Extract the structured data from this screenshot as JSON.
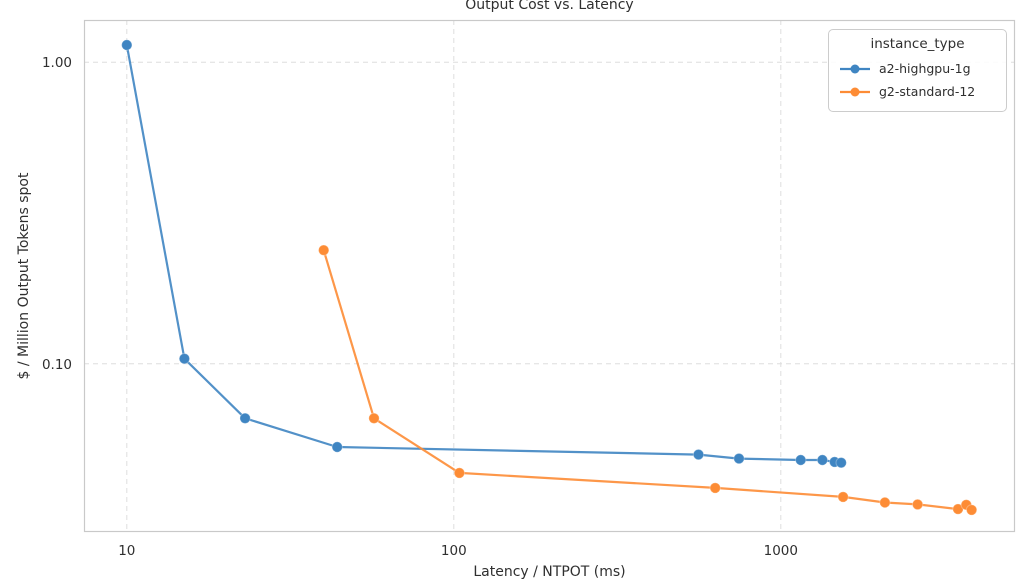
{
  "chart_data": {
    "type": "line",
    "title": "Output Cost vs. Latency",
    "xlabel": "Latency / NTPOT (ms)",
    "ylabel": "$ / Million Output Tokens spot",
    "xscale": "log",
    "yscale": "log",
    "xlim": [
      7.4,
      5200
    ],
    "ylim": [
      0.0277,
      1.38
    ],
    "grid": "dashed",
    "xticks": [
      {
        "value": 10,
        "label": "10"
      },
      {
        "value": 100,
        "label": "100"
      },
      {
        "value": 1000,
        "label": "1000"
      }
    ],
    "yticks": [
      {
        "value": 1.0,
        "label": "1.00"
      },
      {
        "value": 0.1,
        "label": "0.10"
      }
    ],
    "legend": {
      "title": "instance_type",
      "position": "upper right"
    },
    "style": {
      "grid_color": "#dedede",
      "spine_color": "#c9c9c9",
      "text_color": "#2f2f2f",
      "background": "#ffffff"
    },
    "series": [
      {
        "name": "a2-highgpu-1g",
        "color": "#3f85c2",
        "points": [
          [
            10,
            1.14
          ],
          [
            15,
            0.104
          ],
          [
            23,
            0.066
          ],
          [
            44,
            0.053
          ],
          [
            560,
            0.05
          ],
          [
            745,
            0.0485
          ],
          [
            1150,
            0.048
          ],
          [
            1340,
            0.048
          ],
          [
            1460,
            0.0473
          ],
          [
            1530,
            0.047
          ]
        ]
      },
      {
        "name": "g2-standard-12",
        "color": "#fd8c35",
        "points": [
          [
            40,
            0.238
          ],
          [
            57,
            0.066
          ],
          [
            104,
            0.0435
          ],
          [
            630,
            0.0388
          ],
          [
            1550,
            0.0362
          ],
          [
            2080,
            0.0347
          ],
          [
            2620,
            0.0342
          ],
          [
            3480,
            0.033
          ],
          [
            3690,
            0.0341
          ],
          [
            3830,
            0.0328
          ]
        ]
      }
    ]
  }
}
